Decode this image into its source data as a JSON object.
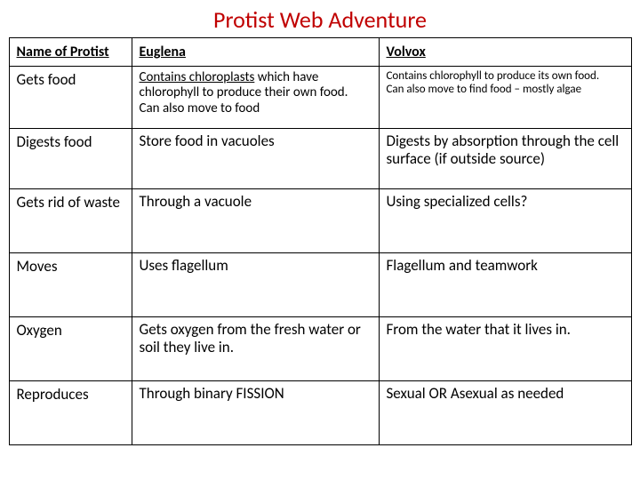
{
  "title": "Protist Web Adventure",
  "colors": {
    "title": "#c00000",
    "text": "#000000",
    "border": "#000000",
    "background": "#ffffff"
  },
  "table": {
    "columns": [
      "Name of Protist",
      "Euglena",
      "Volvox"
    ],
    "rows": [
      {
        "label": "Gets food",
        "euglena": "Contains chloroplasts which have chlorophyll to produce their own food. Can also move to food",
        "euglena_underline_prefix": "Contains chloroplasts",
        "euglena_rest": " which have chlorophyll to produce their own food. Can also move to food",
        "volvox": "Contains chlorophyll to produce its own food.\nCan also move to find food – mostly algae"
      },
      {
        "label": "Digests food",
        "euglena": "Store food in vacuoles",
        "volvox": "Digests by absorption through the cell surface (if outside source)"
      },
      {
        "label": "Gets rid of waste",
        "euglena": "Through a vacuole",
        "volvox": "Using specialized cells?"
      },
      {
        "label": "Moves",
        "euglena": "Uses flagellum",
        "volvox": "Flagellum and teamwork"
      },
      {
        "label": "Oxygen",
        "euglena": "Gets oxygen from the fresh water or soil they live in.",
        "volvox": "From the water that it lives in."
      },
      {
        "label": "Reproduces",
        "euglena": "Through binary FISSION",
        "volvox": "Sexual OR Asexual as needed"
      }
    ]
  }
}
